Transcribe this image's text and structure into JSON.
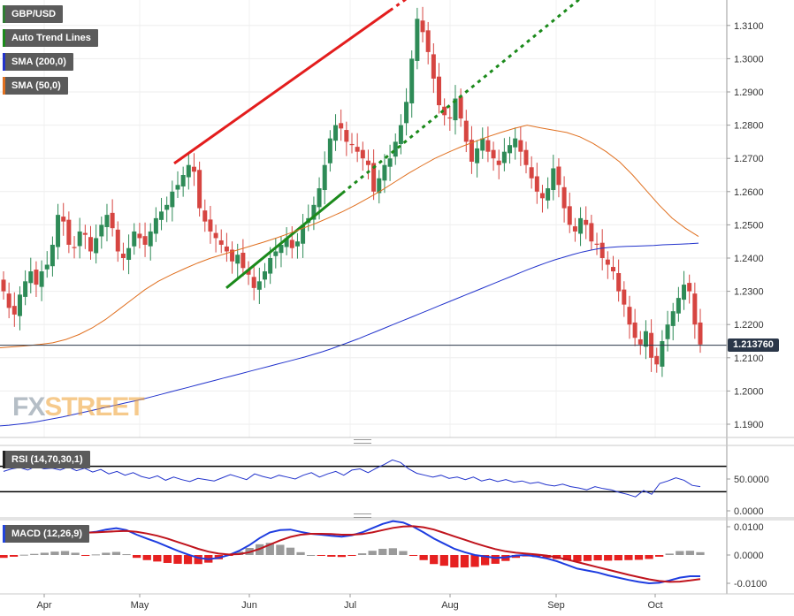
{
  "legends": {
    "symbol": {
      "label": "GBP/USD",
      "color": "#2e7d32"
    },
    "trend": {
      "label": "Auto Trend Lines",
      "color": "#1b8a1b"
    },
    "sma200": {
      "label": "SMA (200,0)",
      "color": "#2233cc"
    },
    "sma50": {
      "label": "SMA (50,0)",
      "color": "#e07020"
    },
    "rsi": {
      "label": "RSI (14,70,30,1)",
      "color": "#222222"
    },
    "macd": {
      "label": "MACD (12,26,9)",
      "color": "#2244dd"
    }
  },
  "brand": {
    "fx": "FX",
    "street": "STREET"
  },
  "last_price": "1.213760",
  "chart_data": [
    {
      "type": "candlestick",
      "title": "GBP/USD",
      "ylim": [
        1.186,
        1.317
      ],
      "yticks": [
        "1.1900",
        "1.2000",
        "1.2100",
        "1.2200",
        "1.2300",
        "1.2400",
        "1.2500",
        "1.2600",
        "1.2700",
        "1.2800",
        "1.2900",
        "1.3000",
        "1.3100"
      ],
      "xticks": [
        "Apr",
        "May",
        "Jun",
        "Jul",
        "Aug",
        "Sep",
        "Oct"
      ],
      "close": [
        1.23,
        1.225,
        1.223,
        1.229,
        1.233,
        1.236,
        1.232,
        1.236,
        1.238,
        1.244,
        1.253,
        1.251,
        1.244,
        1.243,
        1.248,
        1.247,
        1.242,
        1.246,
        1.25,
        1.253,
        1.249,
        1.242,
        1.24,
        1.243,
        1.248,
        1.246,
        1.244,
        1.248,
        1.252,
        1.254,
        1.256,
        1.26,
        1.262,
        1.265,
        1.268,
        1.266,
        1.255,
        1.251,
        1.248,
        1.246,
        1.244,
        1.242,
        1.239,
        1.241,
        1.237,
        1.235,
        1.231,
        1.233,
        1.236,
        1.24,
        1.242,
        1.244,
        1.246,
        1.243,
        1.245,
        1.25,
        1.252,
        1.256,
        1.261,
        1.268,
        1.276,
        1.28,
        1.279,
        1.275,
        1.274,
        1.272,
        1.27,
        1.268,
        1.26,
        1.264,
        1.268,
        1.27,
        1.275,
        1.28,
        1.287,
        1.3,
        1.312,
        1.308,
        1.302,
        1.294,
        1.286,
        1.283,
        1.282,
        1.288,
        1.282,
        1.275,
        1.269,
        1.273,
        1.276,
        1.272,
        1.27,
        1.268,
        1.272,
        1.274,
        1.276,
        1.272,
        1.268,
        1.264,
        1.26,
        1.258,
        1.261,
        1.267,
        1.262,
        1.255,
        1.25,
        1.248,
        1.252,
        1.25,
        1.245,
        1.244,
        1.24,
        1.238,
        1.236,
        1.23,
        1.226,
        1.22,
        1.216,
        1.214,
        1.218,
        1.21,
        1.208,
        1.215,
        1.22,
        1.224,
        1.228,
        1.232,
        1.23,
        1.22,
        1.214
      ],
      "open_offsets": [
        0.0035,
        -0.0045,
        0.004,
        -0.003,
        -0.0045,
        -0.0035
      ],
      "trend_lines": [
        {
          "color": "#e31d1d",
          "points": [
            [
              "May 09",
              1.2685
            ],
            [
              "Jul 14",
              1.3145
            ]
          ],
          "extended": true
        },
        {
          "color": "#1b8a1b",
          "points": [
            [
              "May 25",
              1.231
            ],
            [
              "Jul 06",
              1.2595
            ]
          ],
          "extended": true
        }
      ],
      "series": [
        {
          "name": "SMA (200,0)",
          "color": "#2233cc",
          "values": [
            1.1895,
            1.1897,
            1.19,
            1.1903,
            1.1907,
            1.1912,
            1.1917,
            1.1922,
            1.1928,
            1.1934,
            1.194,
            1.1946,
            1.1952,
            1.1958,
            1.1964,
            1.197,
            1.1976,
            1.1983,
            1.199,
            1.1997,
            1.2004,
            1.2011,
            1.2018,
            1.2025,
            1.2032,
            1.2039,
            1.2046,
            1.2053,
            1.206,
            1.2067,
            1.2074,
            1.2081,
            1.2088,
            1.2095,
            1.2102,
            1.211,
            1.2118,
            1.2127,
            1.2137,
            1.2147,
            1.2157,
            1.2168,
            1.2179,
            1.219,
            1.2201,
            1.2212,
            1.2223,
            1.2234,
            1.2245,
            1.2256,
            1.2267,
            1.2278,
            1.2289,
            1.23,
            1.2311,
            1.2322,
            1.2333,
            1.2344,
            1.2355,
            1.2366,
            1.2376,
            1.2386,
            1.2395,
            1.2403,
            1.2411,
            1.2418,
            1.2424,
            1.2429,
            1.2432,
            1.2434,
            1.2435,
            1.2436,
            1.2437,
            1.2438,
            1.244,
            1.2441,
            1.2442,
            1.2443,
            1.2445
          ]
        },
        {
          "name": "SMA (50,0)",
          "color": "#e07020",
          "values": [
            1.213,
            1.2133,
            1.2136,
            1.214,
            1.2145,
            1.2155,
            1.217,
            1.219,
            1.2215,
            1.2245,
            1.2275,
            1.2305,
            1.233,
            1.235,
            1.2368,
            1.2385,
            1.24,
            1.2412,
            1.2424,
            1.2436,
            1.2448,
            1.2461,
            1.2475,
            1.249,
            1.2505,
            1.2522,
            1.254,
            1.256,
            1.2582,
            1.2605,
            1.263,
            1.2655,
            1.2678,
            1.27,
            1.2718,
            1.2735,
            1.275,
            1.2765,
            1.2778,
            1.279,
            1.28,
            1.2792,
            1.2785,
            1.2778,
            1.2765,
            1.2745,
            1.272,
            1.269,
            1.265,
            1.2605,
            1.256,
            1.252,
            1.249,
            1.2465
          ]
        }
      ]
    },
    {
      "type": "line",
      "title": "RSI (14,70,30,1)",
      "ylim": [
        0,
        100
      ],
      "yticks": [
        "0.0000",
        "50.0000"
      ],
      "levels": [
        70,
        30
      ],
      "series": [
        {
          "name": "RSI",
          "color": "#2233cc",
          "values": [
            62,
            66,
            68,
            64,
            70,
            66,
            67,
            64,
            69,
            63,
            67,
            61,
            65,
            58,
            62,
            56,
            60,
            54,
            51,
            55,
            48,
            53,
            49,
            46,
            51,
            49,
            47,
            52,
            57,
            53,
            49,
            58,
            54,
            51,
            56,
            53,
            50,
            56,
            60,
            53,
            58,
            62,
            56,
            64,
            66,
            60,
            67,
            73,
            80,
            76,
            66,
            59,
            56,
            53,
            56,
            51,
            53,
            49,
            53,
            47,
            50,
            46,
            49,
            45,
            47,
            43,
            45,
            41,
            39,
            42,
            38,
            36,
            33,
            38,
            35,
            33,
            29,
            26,
            22,
            32,
            26,
            43,
            47,
            52,
            48,
            40,
            38
          ]
        }
      ]
    },
    {
      "type": "bar+line",
      "title": "MACD (12,26,9)",
      "ylim": [
        -0.013,
        0.013
      ],
      "yticks": [
        "0.0100",
        "0.0000",
        "-0.0100"
      ],
      "series": [
        {
          "name": "MACD",
          "color": "#1e3de0",
          "values": [
            0.0055,
            0.006,
            0.0068,
            0.0072,
            0.0078,
            0.0085,
            0.009,
            0.0086,
            0.0078,
            0.0082,
            0.009,
            0.0095,
            0.0088,
            0.0072,
            0.0058,
            0.0045,
            0.003,
            0.0015,
            0.0002,
            -0.001,
            -0.0015,
            -0.001,
            0.0,
            0.0015,
            0.0035,
            0.006,
            0.008,
            0.0088,
            0.009,
            0.0082,
            0.0075,
            0.0072,
            0.0068,
            0.0065,
            0.007,
            0.008,
            0.0095,
            0.011,
            0.012,
            0.0115,
            0.01,
            0.008,
            0.0058,
            0.004,
            0.0022,
            0.001,
            0.0,
            -0.0005,
            -0.001,
            -0.0008,
            -0.0002,
            0.0,
            -0.0005,
            -0.0012,
            -0.0022,
            -0.0035,
            -0.0048,
            -0.0055,
            -0.0062,
            -0.0072,
            -0.008,
            -0.0088,
            -0.0095,
            -0.01,
            -0.0098,
            -0.009,
            -0.008,
            -0.0075,
            -0.0075
          ]
        },
        {
          "name": "Signal",
          "color": "#c0141d",
          "values": [
            0.0065,
            0.0066,
            0.0067,
            0.0068,
            0.007,
            0.0073,
            0.0076,
            0.0078,
            0.0079,
            0.008,
            0.0082,
            0.0084,
            0.0085,
            0.0082,
            0.0076,
            0.0068,
            0.0058,
            0.0046,
            0.0034,
            0.0022,
            0.0012,
            0.0005,
            0.0002,
            0.0003,
            0.001,
            0.0022,
            0.0037,
            0.0052,
            0.0064,
            0.0072,
            0.0075,
            0.0075,
            0.0074,
            0.0072,
            0.0072,
            0.0074,
            0.008,
            0.0088,
            0.0096,
            0.0101,
            0.0102,
            0.0098,
            0.009,
            0.0078,
            0.0066,
            0.0054,
            0.0042,
            0.0031,
            0.0021,
            0.0013,
            0.0008,
            0.0005,
            0.0002,
            -0.0002,
            -0.0008,
            -0.0016,
            -0.0025,
            -0.0034,
            -0.0043,
            -0.0052,
            -0.0061,
            -0.007,
            -0.0078,
            -0.0086,
            -0.0092,
            -0.0095,
            -0.0094,
            -0.009,
            -0.0085
          ]
        }
      ]
    }
  ]
}
